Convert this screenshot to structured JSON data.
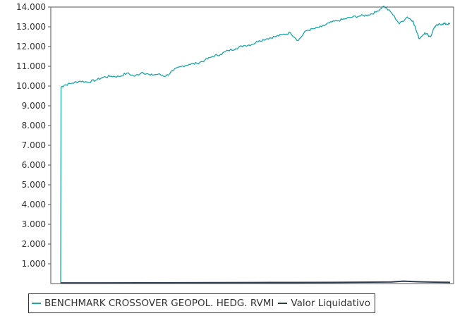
{
  "chart_data": {
    "type": "line",
    "title": "",
    "xlabel": "",
    "ylabel": "",
    "ylim": [
      0,
      14000
    ],
    "yticks": [
      1000,
      2000,
      3000,
      4000,
      5000,
      6000,
      7000,
      8000,
      9000,
      10000,
      11000,
      12000,
      13000,
      14000
    ],
    "ytick_labels": [
      "1.000",
      "2.000",
      "3.000",
      "4.000",
      "5.000",
      "6.000",
      "7.000",
      "8.000",
      "9.000",
      "10.000",
      "11.000",
      "12.000",
      "13.000",
      "14.000"
    ],
    "x_range": [
      0,
      100
    ],
    "grid": false,
    "legend_position": "bottom",
    "series": [
      {
        "name": "BENCHMARK CROSSOVER GEOPOL. HEDG. RVMI",
        "color": "#1aa6a6",
        "x": [
          0,
          0.1,
          1,
          3,
          5,
          7,
          9,
          11,
          13,
          15,
          17,
          19,
          21,
          23,
          25,
          27,
          29,
          31,
          33,
          35,
          37,
          39,
          41,
          43,
          45,
          47,
          49,
          51,
          53,
          55,
          57,
          59,
          61,
          63,
          65,
          67,
          69,
          71,
          73,
          75,
          77,
          79,
          81,
          83,
          85,
          87,
          89,
          90.5,
          92,
          93.5,
          95,
          96,
          97,
          98,
          99,
          100
        ],
        "values": [
          0,
          9950,
          10050,
          10150,
          10250,
          10200,
          10300,
          10450,
          10500,
          10480,
          10650,
          10500,
          10700,
          10550,
          10600,
          10500,
          10800,
          11000,
          11100,
          11150,
          11300,
          11500,
          11600,
          11800,
          11900,
          12050,
          12100,
          12300,
          12400,
          12500,
          12600,
          12700,
          12300,
          12800,
          12900,
          13000,
          13200,
          13300,
          13400,
          13500,
          13550,
          13600,
          13750,
          14050,
          13700,
          13150,
          13500,
          13300,
          12400,
          12700,
          12500,
          13000,
          13100,
          13150,
          13150,
          13150
        ]
      },
      {
        "name": "Valor Liquidativo",
        "color": "#2f3d4f",
        "x": [
          0,
          10,
          20,
          30,
          40,
          50,
          60,
          70,
          80,
          85,
          88,
          92,
          96,
          100
        ],
        "values": [
          30,
          30,
          35,
          40,
          45,
          50,
          55,
          60,
          70,
          80,
          120,
          90,
          70,
          60
        ]
      }
    ]
  }
}
